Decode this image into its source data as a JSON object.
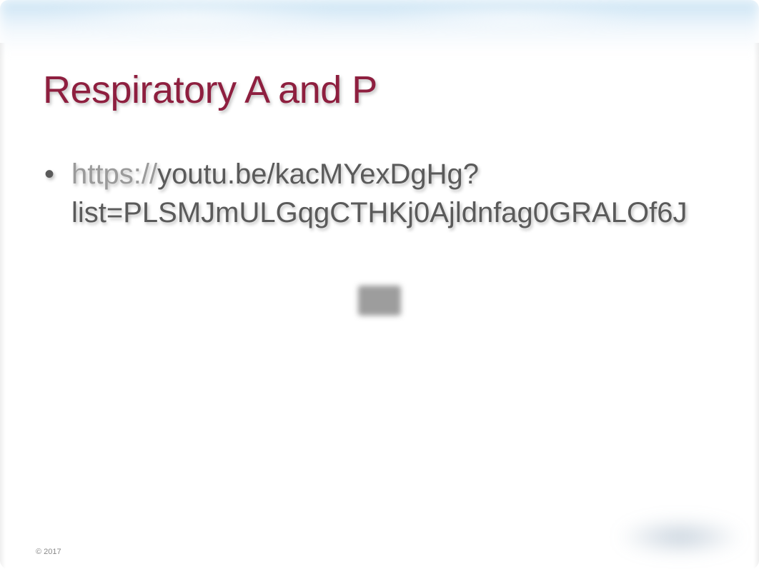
{
  "slide": {
    "title": "Respiratory A and P",
    "bullet": {
      "url_protocol": "https://",
      "url_rest": "youtu.be/kacMYexDgHg?list=PLSMJmULGqgCTHKj0Ajldnfag0GRALOf6J"
    },
    "copyright": "© 2017"
  },
  "styling": {
    "title_color": "#8e1f3f",
    "title_fontsize": 54,
    "body_color": "#5a5a5a",
    "body_fontsize": 40,
    "protocol_color": "#9a9a9a",
    "background_color": "#ffffff",
    "cloud_color": "#8cc3e6",
    "shadow_color": "rgba(0,0,0,0.25)",
    "copyright_color": "#888888",
    "copyright_fontsize": 11
  }
}
